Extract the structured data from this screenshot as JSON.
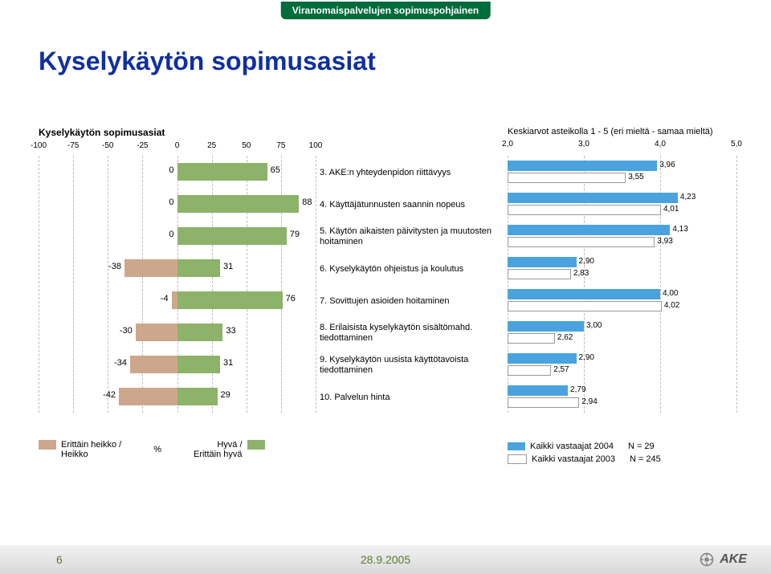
{
  "banner": "Viranomaispalvelujen sopimuspohjainen",
  "title": "Kyselykäytön sopimusasiat",
  "left_chart": {
    "header": "Kyselykäytön sopimusasiat",
    "xmin": -100,
    "xmax": 100,
    "ticks": [
      -100,
      -75,
      -50,
      -25,
      0,
      25,
      50,
      75,
      100
    ],
    "bar_neg_color": "#cda78c",
    "bar_pos_color": "#8db26a",
    "grid_color": "#bbbbbb",
    "rows": [
      {
        "neg": 0,
        "pos": 65
      },
      {
        "neg": 0,
        "pos": 88
      },
      {
        "neg": 0,
        "pos": 79
      },
      {
        "neg": -38,
        "pos": 31
      },
      {
        "neg": -4,
        "pos": 76
      },
      {
        "neg": -30,
        "pos": 33
      },
      {
        "neg": -34,
        "pos": 31
      },
      {
        "neg": -42,
        "pos": 29
      }
    ]
  },
  "center_labels": [
    "3. AKE:n yhteydenpidon riittävyys",
    "4. Käyttäjätunnusten saannin nopeus",
    "5. Käytön aikaisten päivitysten ja muutosten hoitaminen",
    "6. Kyselykäytön ohjeistus ja koulutus",
    "7. Sovittujen asioiden hoitaminen",
    "8. Erilaisista kyselykäytön sisältömahd. tiedottaminen",
    "9. Kyselykäytön uusista käyttötavoista tiedottaminen",
    "10. Palvelun hinta"
  ],
  "right_chart": {
    "header": "Keskiarvot asteikolla 1 - 5 (eri mieltä - samaa mieltä)",
    "xmin": 2.0,
    "xmax": 5.0,
    "ticks": [
      "2,0",
      "3,0",
      "4,0",
      "5,0"
    ],
    "tick_vals": [
      2.0,
      3.0,
      4.0,
      5.0
    ],
    "top_color": "#4aa3df",
    "bot_color": "#ffffff",
    "bot_border": "#999999",
    "grid_color": "#bbbbbb",
    "rows": [
      {
        "top": 3.96,
        "bot": 3.55,
        "top_lbl": "3,96",
        "bot_lbl": "3,55"
      },
      {
        "top": 4.23,
        "bot": 4.01,
        "top_lbl": "4,23",
        "bot_lbl": "4,01"
      },
      {
        "top": 4.13,
        "bot": 3.93,
        "top_lbl": "4,13",
        "bot_lbl": "3,93"
      },
      {
        "top": 2.9,
        "bot": 2.83,
        "top_lbl": "2,90",
        "bot_lbl": "2,83"
      },
      {
        "top": 4.0,
        "bot": 4.02,
        "top_lbl": "4,00",
        "bot_lbl": "4,02"
      },
      {
        "top": 3.0,
        "bot": 2.62,
        "top_lbl": "3,00",
        "bot_lbl": "2,62"
      },
      {
        "top": 2.9,
        "bot": 2.57,
        "top_lbl": "2,90",
        "bot_lbl": "2,57"
      },
      {
        "top": 2.79,
        "bot": 2.94,
        "top_lbl": "2,79",
        "bot_lbl": "2,94"
      }
    ]
  },
  "legend_left": {
    "neg": {
      "label1": "Erittäin heikko /",
      "label2": "Heikko",
      "color": "#cda78c"
    },
    "pct": "%",
    "pos": {
      "label1": "Hyvä /",
      "label2": "Erittäin hyvä",
      "color": "#8db26a"
    }
  },
  "legend_right": {
    "s1": {
      "color": "#4aa3df",
      "label": "Kaikki vastaajat 2004",
      "n": "N = 29"
    },
    "s2": {
      "color": "#ffffff",
      "border": "#999",
      "label": "Kaikki vastaajat 2003",
      "n": "N = 245"
    }
  },
  "footer": {
    "page": "6",
    "date": "28.9.2005",
    "logo": "AKE"
  }
}
